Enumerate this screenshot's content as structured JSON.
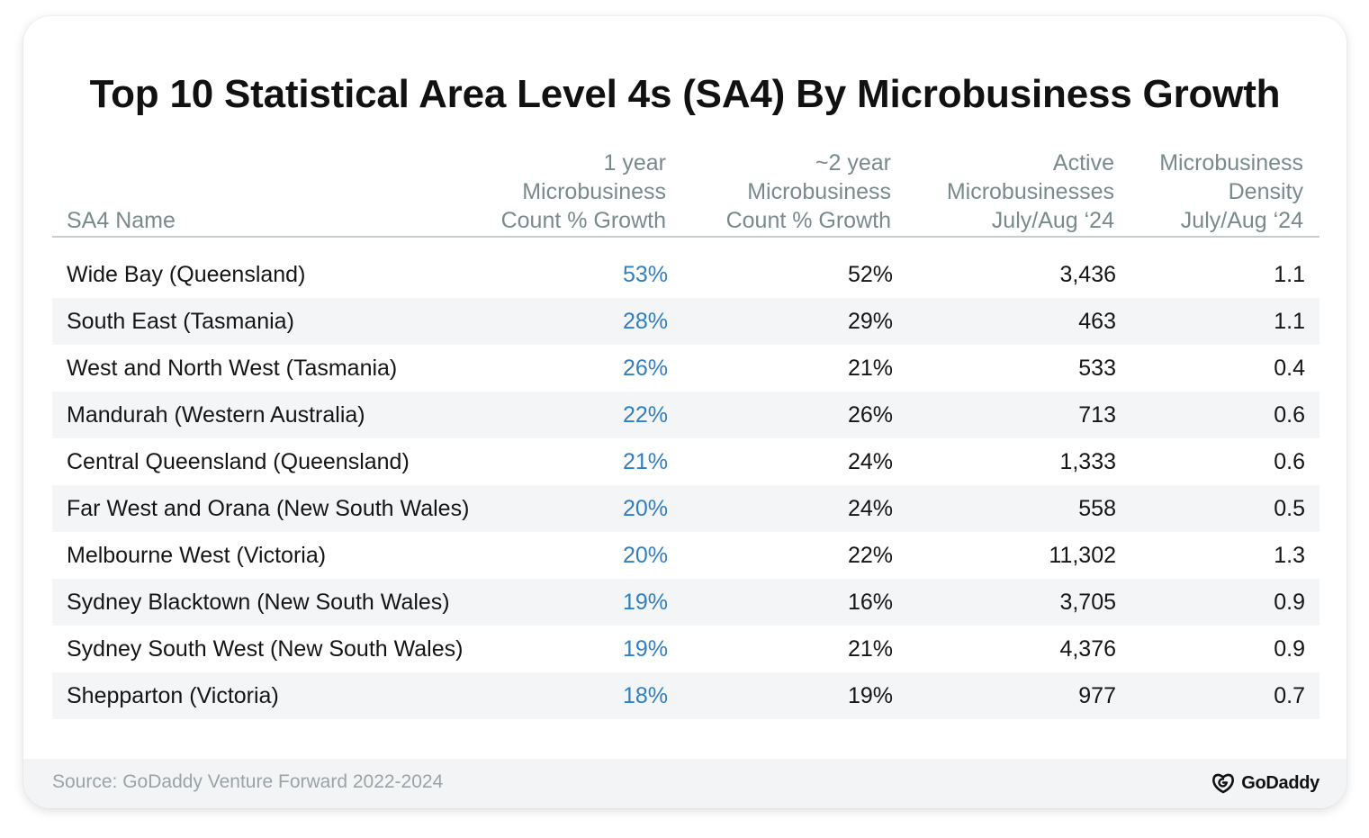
{
  "chart_data": {
    "type": "table",
    "title": "Top 10 Statistical Area Level 4s (SA4) By Microbusiness Growth",
    "columns": [
      {
        "key": "name",
        "lines": [
          "SA4 Name"
        ]
      },
      {
        "key": "growth_1yr",
        "lines": [
          "1 year",
          "Microbusiness",
          "Count % Growth"
        ]
      },
      {
        "key": "growth_2yr",
        "lines": [
          "~2 year",
          "Microbusiness",
          "Count % Growth"
        ]
      },
      {
        "key": "active",
        "lines": [
          "Active",
          "Microbusinesses",
          "July/Aug ‘24"
        ]
      },
      {
        "key": "density",
        "lines": [
          "Microbusiness",
          "Density",
          "July/Aug ‘24"
        ]
      }
    ],
    "rows": [
      {
        "name": "Wide Bay (Queensland)",
        "growth_1yr": "53%",
        "growth_2yr": "52%",
        "active": "3,436",
        "density": "1.1"
      },
      {
        "name": "South East (Tasmania)",
        "growth_1yr": "28%",
        "growth_2yr": "29%",
        "active": "463",
        "density": "1.1"
      },
      {
        "name": "West and North West (Tasmania)",
        "growth_1yr": "26%",
        "growth_2yr": "21%",
        "active": "533",
        "density": "0.4"
      },
      {
        "name": "Mandurah (Western Australia)",
        "growth_1yr": "22%",
        "growth_2yr": "26%",
        "active": "713",
        "density": "0.6"
      },
      {
        "name": "Central Queensland (Queensland)",
        "growth_1yr": "21%",
        "growth_2yr": "24%",
        "active": "1,333",
        "density": "0.6"
      },
      {
        "name": "Far West and Orana (New South Wales)",
        "growth_1yr": "20%",
        "growth_2yr": "24%",
        "active": "558",
        "density": "0.5"
      },
      {
        "name": "Melbourne West (Victoria)",
        "growth_1yr": "20%",
        "growth_2yr": "22%",
        "active": "11,302",
        "density": "1.3"
      },
      {
        "name": "Sydney Blacktown (New South Wales)",
        "growth_1yr": "19%",
        "growth_2yr": "16%",
        "active": "3,705",
        "density": "0.9"
      },
      {
        "name": "Sydney South West (New South Wales)",
        "growth_1yr": "19%",
        "growth_2yr": "21%",
        "active": "4,376",
        "density": "0.9"
      },
      {
        "name": "Shepparton (Victoria)",
        "growth_1yr": "18%",
        "growth_2yr": "19%",
        "active": "977",
        "density": "0.7"
      }
    ],
    "highlight_column": "growth_1yr",
    "highlight_color": "#2f7fc4",
    "row_shading": "alternating",
    "shade_color": "#f4f5f6"
  },
  "footer": {
    "source": "Source: GoDaddy Venture Forward 2022-2024",
    "logo_text": "GoDaddy",
    "logo_icon": "godaddy-logo-icon"
  }
}
